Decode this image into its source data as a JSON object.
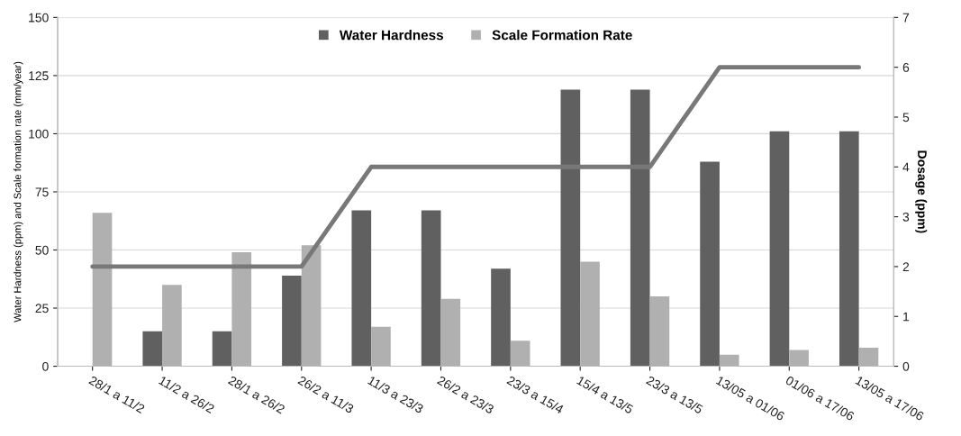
{
  "chart_data": {
    "type": "bar",
    "ylabel": "Water Hardness (ppm) and Scale formation rate (mm/year)",
    "y2label": "Dosage (ppm)",
    "categories": [
      "28/1 a 11/2",
      "11/2 a 26/2",
      "28/1 a 26/2",
      "26/2 a 11/3",
      "11/3 a 23/3",
      "26/2 a 23/3",
      "23/3 a 15/4",
      "15/4 a 13/5",
      "23/3 a 13/5",
      "13/05 a 01/06",
      "01/06 a 17/06",
      "13/05 a 17/06"
    ],
    "series": [
      {
        "name": "Water Hardness",
        "color": "#606060",
        "values": [
          null,
          15,
          15,
          39,
          67,
          67,
          42,
          119,
          119,
          88,
          101,
          101
        ]
      },
      {
        "name": "Scale Formation Rate",
        "color": "#b0b0b0",
        "values": [
          66,
          35,
          49,
          52,
          17,
          29,
          11,
          45,
          30,
          5,
          7,
          8
        ]
      },
      {
        "type": "line",
        "axis": "y2",
        "color": "#787878",
        "values": [
          2,
          2,
          2,
          2,
          4,
          4,
          4,
          4,
          4,
          6,
          6,
          6
        ]
      }
    ],
    "ylim": [
      0,
      150
    ],
    "yticks": [
      0,
      25,
      50,
      75,
      100,
      125,
      150
    ],
    "y2lim": [
      0,
      7
    ],
    "y2ticks": [
      0,
      1,
      2,
      3,
      4,
      5,
      6,
      7
    ],
    "grid": "y",
    "legend": "top"
  }
}
